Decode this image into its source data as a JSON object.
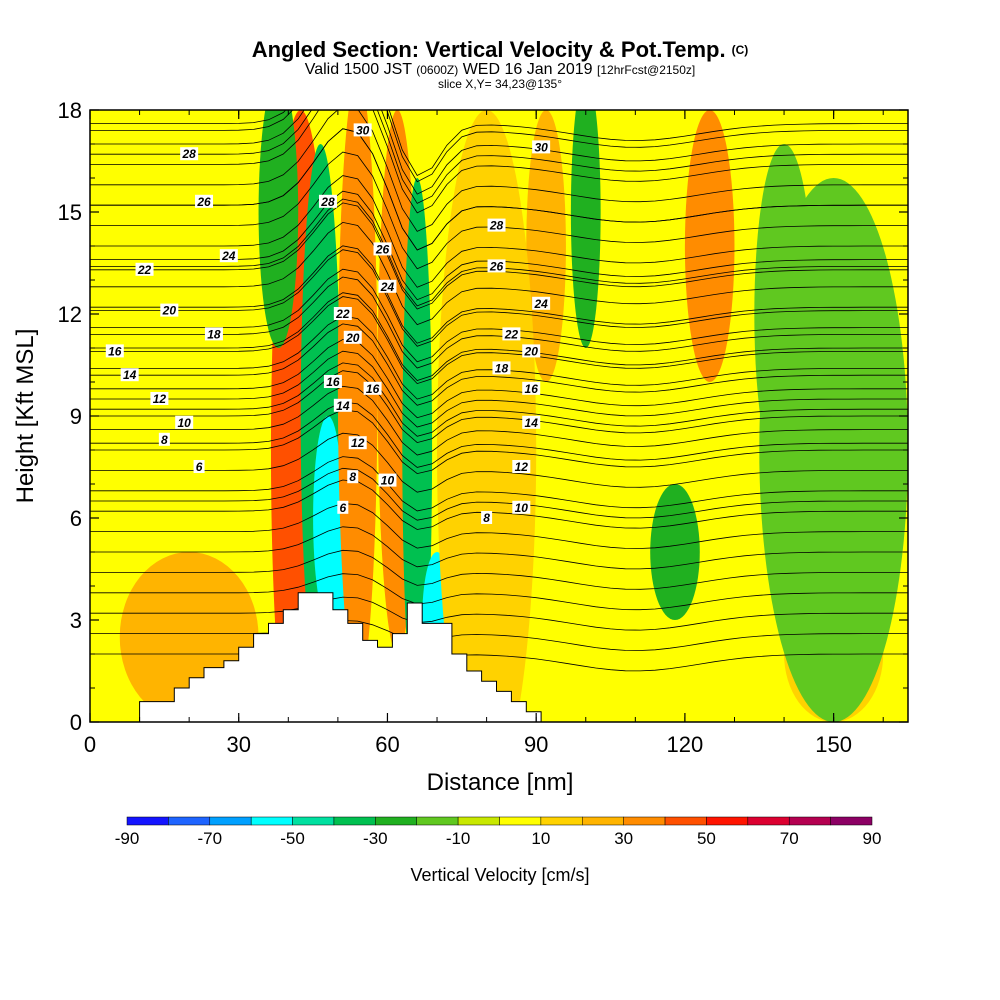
{
  "title": {
    "main": "Angled Section: Vertical Velocity & Pot.Temp.",
    "mark": "(C)",
    "valid_prefix": "Valid 1500 JST",
    "valid_utc": "(0600Z)",
    "valid_date": "WED 16 Jan 2019",
    "forecast": "[12hrFcst@2150z]",
    "slice": "slice X,Y= 34,23@135°"
  },
  "chart_data": {
    "type": "heatmap",
    "xlabel": "Distance [nm]",
    "ylabel": "Height [Kft MSL]",
    "xlim": [
      0,
      165
    ],
    "ylim": [
      0,
      18
    ],
    "x_ticks": [
      0,
      30,
      60,
      90,
      120,
      150
    ],
    "y_ticks": [
      0,
      3,
      6,
      9,
      12,
      15,
      18
    ],
    "colorbar": {
      "label": "Vertical Velocity [cm/s]",
      "range": [
        -90,
        90
      ],
      "step": 10,
      "tick_labels": [
        -90,
        -70,
        -50,
        -30,
        -10,
        10,
        30,
        50,
        70,
        90
      ],
      "colors": [
        "#1414ff",
        "#1e64ff",
        "#00a0ff",
        "#00ffff",
        "#00e0a0",
        "#00c050",
        "#20b020",
        "#60c820",
        "#c8e800",
        "#ffff00",
        "#ffd200",
        "#ffb400",
        "#ff8c00",
        "#ff5000",
        "#ff1400",
        "#dc0030",
        "#b40050",
        "#8c0064"
      ]
    },
    "background_value": 5,
    "velocity_regions": [
      {
        "x": 42.5,
        "y": 8,
        "rx": 6,
        "ry": 10,
        "value": 45
      },
      {
        "x": 46.5,
        "y": 9,
        "rx": 4,
        "ry": 8,
        "value": -35
      },
      {
        "x": 48,
        "y": 6,
        "rx": 3,
        "ry": 3,
        "value": -55
      },
      {
        "x": 50,
        "y": 4,
        "rx": 3,
        "ry": 2,
        "value": -55
      },
      {
        "x": 54,
        "y": 10,
        "rx": 4,
        "ry": 9,
        "value": 30
      },
      {
        "x": 62,
        "y": 10,
        "rx": 4,
        "ry": 8,
        "value": 35
      },
      {
        "x": 66,
        "y": 8,
        "rx": 3,
        "ry": 8,
        "value": -35
      },
      {
        "x": 70,
        "y": 3,
        "rx": 3,
        "ry": 2,
        "value": -55
      },
      {
        "x": 38,
        "y": 15,
        "rx": 4,
        "ry": 4,
        "value": -25
      },
      {
        "x": 92,
        "y": 14,
        "rx": 4,
        "ry": 4,
        "value": 25
      },
      {
        "x": 100,
        "y": 15,
        "rx": 3,
        "ry": 4,
        "value": -25
      },
      {
        "x": 125,
        "y": 14,
        "rx": 5,
        "ry": 4,
        "value": 35
      },
      {
        "x": 118,
        "y": 5,
        "rx": 5,
        "ry": 2,
        "value": -25
      },
      {
        "x": 140,
        "y": 12,
        "rx": 6,
        "ry": 5,
        "value": -15
      },
      {
        "x": 20,
        "y": 2.5,
        "rx": 14,
        "ry": 2.5,
        "value": 20
      },
      {
        "x": 150,
        "y": 2,
        "rx": 10,
        "ry": 2,
        "value": 12
      },
      {
        "x": 80,
        "y": 8,
        "rx": 10,
        "ry": 10,
        "value": 12
      },
      {
        "x": 150,
        "y": 8,
        "rx": 15,
        "ry": 8,
        "value": -12
      }
    ],
    "terrain": {
      "x": [
        0,
        10,
        10,
        17,
        17,
        20,
        20,
        23,
        23,
        27,
        27,
        30,
        30,
        33,
        33,
        36,
        36,
        39,
        39,
        42,
        42,
        49,
        49,
        52,
        52,
        55,
        55,
        58,
        58,
        61,
        61,
        64,
        64,
        67,
        67,
        73,
        73,
        76,
        76,
        79,
        79,
        82,
        82,
        85,
        85,
        88,
        88,
        91,
        91
      ],
      "height": [
        0,
        0,
        0.6,
        0.6,
        1.0,
        1.0,
        1.3,
        1.3,
        1.6,
        1.6,
        1.8,
        1.8,
        2.2,
        2.2,
        2.6,
        2.6,
        2.9,
        2.9,
        3.3,
        3.3,
        3.8,
        3.8,
        3.3,
        3.3,
        2.9,
        2.9,
        2.4,
        2.4,
        2.2,
        2.2,
        2.6,
        2.6,
        3.5,
        3.5,
        2.9,
        2.9,
        2.0,
        2.0,
        1.5,
        1.5,
        1.2,
        1.2,
        0.9,
        0.9,
        0.6,
        0.6,
        0.3,
        0.3,
        0
      ]
    },
    "theta_levels": [
      {
        "label": "6",
        "base": 6.5
      },
      {
        "label": "8",
        "base": 8.2
      },
      {
        "label": "10",
        "base": 9.0
      },
      {
        "label": "12",
        "base": 9.5
      },
      {
        "label": "14",
        "base": 10.2
      },
      {
        "label": "16",
        "base": 10.9
      },
      {
        "label": "18",
        "base": 11.4
      },
      {
        "label": "20",
        "base": 12.1
      },
      {
        "label": "22",
        "base": 13.3
      },
      {
        "label": "24",
        "base": 13.6
      },
      {
        "label": "26",
        "base": 15.2
      },
      {
        "label": "28",
        "base": 16.7
      },
      {
        "label": "30",
        "base": 17.4
      }
    ],
    "theta_contour_labels": [
      {
        "label": "28",
        "x": 20,
        "y": 16.7
      },
      {
        "label": "26",
        "x": 23,
        "y": 15.3
      },
      {
        "label": "24",
        "x": 28,
        "y": 13.7
      },
      {
        "label": "22",
        "x": 11,
        "y": 13.3
      },
      {
        "label": "20",
        "x": 16,
        "y": 12.1
      },
      {
        "label": "18",
        "x": 25,
        "y": 11.4
      },
      {
        "label": "16",
        "x": 5,
        "y": 10.9
      },
      {
        "label": "14",
        "x": 8,
        "y": 10.2
      },
      {
        "label": "12",
        "x": 14,
        "y": 9.5
      },
      {
        "label": "10",
        "x": 19,
        "y": 8.8
      },
      {
        "label": "8",
        "x": 15,
        "y": 8.3
      },
      {
        "label": "6",
        "x": 22,
        "y": 7.5
      },
      {
        "label": "30",
        "x": 55,
        "y": 17.4
      },
      {
        "label": "28",
        "x": 48,
        "y": 15.3
      },
      {
        "label": "26",
        "x": 59,
        "y": 13.9
      },
      {
        "label": "24",
        "x": 60,
        "y": 12.8
      },
      {
        "label": "22",
        "x": 51,
        "y": 12.0
      },
      {
        "label": "20",
        "x": 53,
        "y": 11.3
      },
      {
        "label": "16",
        "x": 49,
        "y": 10.0
      },
      {
        "label": "14",
        "x": 51,
        "y": 9.3
      },
      {
        "label": "12",
        "x": 54,
        "y": 8.2
      },
      {
        "label": "8",
        "x": 53,
        "y": 7.2
      },
      {
        "label": "6",
        "x": 51,
        "y": 6.3
      },
      {
        "label": "16",
        "x": 57,
        "y": 9.8
      },
      {
        "label": "10",
        "x": 60,
        "y": 7.1
      },
      {
        "label": "30",
        "x": 91,
        "y": 16.9
      },
      {
        "label": "28",
        "x": 82,
        "y": 14.6
      },
      {
        "label": "26",
        "x": 82,
        "y": 13.4
      },
      {
        "label": "24",
        "x": 91,
        "y": 12.3
      },
      {
        "label": "22",
        "x": 85,
        "y": 11.4
      },
      {
        "label": "20",
        "x": 89,
        "y": 10.9
      },
      {
        "label": "18",
        "x": 83,
        "y": 10.4
      },
      {
        "label": "16",
        "x": 89,
        "y": 9.8
      },
      {
        "label": "14",
        "x": 89,
        "y": 8.8
      },
      {
        "label": "12",
        "x": 87,
        "y": 7.5
      },
      {
        "label": "10",
        "x": 87,
        "y": 6.3
      },
      {
        "label": "8",
        "x": 80,
        "y": 6.0
      }
    ]
  }
}
